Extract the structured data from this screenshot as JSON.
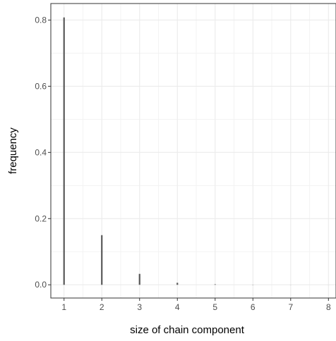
{
  "chart_data": {
    "type": "bar",
    "style": "vertical-lines",
    "xlabel": "size of chain component",
    "ylabel": "frequency",
    "x_ticks": [
      1,
      2,
      3,
      4,
      5,
      6,
      7,
      8
    ],
    "y_ticks": [
      0.0,
      0.2,
      0.4,
      0.6,
      0.8
    ],
    "y_tick_labels": [
      "0.0",
      "0.2",
      "0.4",
      "0.6",
      "0.8"
    ],
    "xlim": [
      0.65,
      8.2
    ],
    "ylim": [
      -0.04,
      0.85
    ],
    "grid": true,
    "colors": {
      "bar": "#595959",
      "grid_major": "#ebebeb",
      "grid_minor": "#f3f3f3",
      "panel_border": "#333333"
    },
    "x": [
      1,
      2,
      3,
      4,
      5,
      6,
      7,
      8
    ],
    "values": [
      0.808,
      0.15,
      0.033,
      0.006,
      0.0015,
      0.0005,
      0.0002,
      0.0001
    ]
  }
}
